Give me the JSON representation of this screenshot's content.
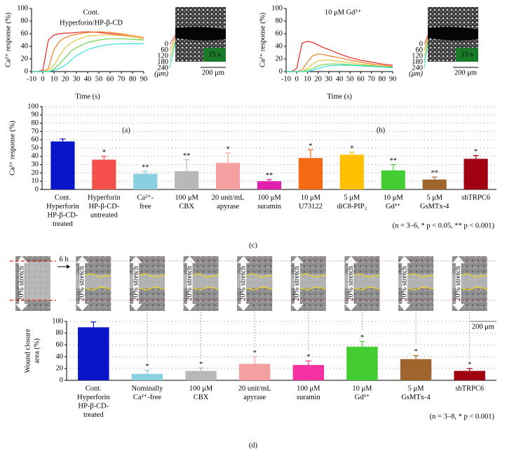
{
  "chart_data": [
    {
      "type": "line",
      "panel": "(a)",
      "annotations": [
        {
          "text": "Cont.",
          "color": "#000000"
        },
        {
          "text": "Hyperforin/HP-β-CD",
          "color": "#1a1ab4"
        }
      ],
      "xlabel": "Time (s)",
      "ylabel": "Ca²⁺ response (%)",
      "x": [
        -10,
        -5,
        0,
        5,
        10,
        15,
        20,
        25,
        30,
        40,
        50,
        60,
        70,
        80,
        90
      ],
      "xlim": [
        -10,
        90
      ],
      "xticks": [
        -10,
        0,
        10,
        20,
        30,
        40,
        50,
        60,
        70,
        80,
        90
      ],
      "ylim": [
        0,
        100
      ],
      "yticks": [
        0,
        20,
        40,
        60,
        80,
        100
      ],
      "legend_unit": "(μm)",
      "image_label": "15 s",
      "scale_bar": "200 μm",
      "series": [
        {
          "name": "0",
          "color": "#e8251f",
          "values": [
            0,
            0,
            2,
            50,
            58,
            60,
            61,
            61,
            62,
            63,
            62,
            60,
            58,
            55,
            52
          ]
        },
        {
          "name": "60",
          "color": "#f07d1e",
          "values": [
            0,
            0,
            0,
            5,
            35,
            48,
            54,
            57,
            59,
            62,
            63,
            62,
            60,
            57,
            54
          ]
        },
        {
          "name": "120",
          "color": "#e0c83a",
          "values": [
            0,
            0,
            0,
            2,
            10,
            25,
            38,
            45,
            50,
            56,
            58,
            58,
            57,
            55,
            52
          ]
        },
        {
          "name": "180",
          "color": "#6cd44a",
          "values": [
            0,
            0,
            0,
            0,
            4,
            12,
            22,
            32,
            38,
            46,
            50,
            52,
            52,
            51,
            50
          ]
        },
        {
          "name": "240",
          "color": "#33dede",
          "values": [
            0,
            0,
            0,
            0,
            2,
            5,
            10,
            18,
            25,
            35,
            40,
            43,
            44,
            44,
            44
          ]
        }
      ]
    },
    {
      "type": "line",
      "panel": "(b)",
      "annotations": [
        {
          "text": "10 μM Gd³⁺",
          "color": "#000000"
        }
      ],
      "xlabel": "Time (s)",
      "ylabel": "Ca²⁺ response (%)",
      "x": [
        -10,
        -5,
        0,
        5,
        10,
        15,
        20,
        25,
        30,
        40,
        50,
        60,
        70,
        80,
        90
      ],
      "xlim": [
        -10,
        90
      ],
      "xticks": [
        -10,
        0,
        10,
        20,
        30,
        40,
        50,
        60,
        70,
        80,
        90
      ],
      "ylim": [
        0,
        100
      ],
      "yticks": [
        0,
        20,
        40,
        60,
        80,
        100
      ],
      "legend_unit": "(μm)",
      "image_label": "15 s",
      "scale_bar": "200 μm",
      "series": [
        {
          "name": "0",
          "color": "#e8251f",
          "values": [
            0,
            0,
            5,
            45,
            48,
            46,
            42,
            38,
            35,
            28,
            22,
            18,
            15,
            12,
            10
          ]
        },
        {
          "name": "60",
          "color": "#f07d1e",
          "values": [
            0,
            0,
            0,
            3,
            15,
            25,
            28,
            27,
            25,
            22,
            18,
            15,
            12,
            10,
            8
          ]
        },
        {
          "name": "120",
          "color": "#e0c83a",
          "values": [
            0,
            0,
            0,
            0,
            5,
            12,
            17,
            18,
            18,
            16,
            14,
            12,
            10,
            8,
            7
          ]
        },
        {
          "name": "180",
          "color": "#6cd44a",
          "values": [
            0,
            0,
            0,
            0,
            2,
            5,
            9,
            11,
            12,
            12,
            11,
            10,
            9,
            8,
            7
          ]
        },
        {
          "name": "240",
          "color": "#33dede",
          "values": [
            0,
            0,
            0,
            0,
            0,
            2,
            5,
            7,
            9,
            10,
            10,
            9,
            8,
            7,
            6
          ]
        }
      ]
    },
    {
      "type": "bar",
      "panel": "(c)",
      "ylabel": "Ca²⁺ response (%)",
      "note": "(n = 3–6, * p < 0.05, ** p < 0.001)",
      "categories": [
        [
          "Cont.",
          "Hyperforin",
          "HP-β-CD-",
          "treated"
        ],
        [
          "Hyperforin",
          "HP-β-CD-",
          "untreated"
        ],
        [
          "Ca²⁺-",
          "free"
        ],
        [
          "100 μM",
          "CBX"
        ],
        [
          "20 unit/mL",
          "apyrase"
        ],
        [
          "100 μM",
          "suramin"
        ],
        [
          "10 μM",
          "U73122"
        ],
        [
          "5 μM",
          "diC8-PIP₂"
        ],
        [
          "10 μM",
          "Gd³⁺"
        ],
        [
          "5 μM",
          "GsMTx-4"
        ],
        [
          "shTRPC6"
        ]
      ],
      "label_colors": [
        [
          null,
          "#1a1ab4",
          "#1a1ab4",
          "#1a1ab4"
        ],
        [
          "#e0201a",
          "#e0201a",
          null
        ]
      ],
      "values": [
        58,
        36,
        19,
        22,
        32,
        10,
        38,
        42,
        23,
        12,
        37
      ],
      "errors": [
        3,
        4,
        3,
        14,
        12,
        2,
        10,
        3,
        7,
        3,
        4
      ],
      "significance": [
        null,
        "*",
        "**",
        "**",
        "*",
        "**",
        "*",
        "*",
        "**",
        "**",
        "*"
      ],
      "colors": [
        "#0a14c8",
        "#f5504b",
        "#8ad0e0",
        "#b8b8b8",
        "#f5a0a0",
        "#e020b0",
        "#f56a14",
        "#ffc000",
        "#44cc33",
        "#a0642d",
        "#a00010"
      ],
      "ylim": [
        0,
        100
      ],
      "yticks": [
        0,
        10,
        20,
        30,
        40,
        50,
        60,
        70,
        80,
        90,
        100
      ],
      "grid": true
    },
    {
      "type": "bar",
      "panel": "(d)",
      "ylabel": [
        "Wound closure",
        "area (%)"
      ],
      "note": "(n = 3–8, * p < 0.001)",
      "stretch_label": "20% stretch",
      "time_label": "6 h",
      "scale_bar": "200 μm",
      "categories": [
        [
          "Cont.",
          "Hyperforin",
          "HP-β-CD-",
          "treated"
        ],
        [
          "Nominally",
          "Ca²⁺-free"
        ],
        [
          "100 μM",
          "CBX"
        ],
        [
          "20 unit/mL",
          "apyrase"
        ],
        [
          "100 μM",
          "suramin"
        ],
        [
          "10 μM",
          "Gd³⁺"
        ],
        [
          "5 μM",
          "GsMTx-4"
        ],
        [
          "shTRPC6"
        ]
      ],
      "label_colors": [
        [
          null,
          "#1a1ab4",
          "#1a1ab4",
          "#1a1ab4"
        ]
      ],
      "values": [
        90,
        11,
        16,
        28,
        26,
        57,
        36,
        16
      ],
      "errors": [
        9,
        6,
        5,
        12,
        7,
        9,
        6,
        4
      ],
      "significance": [
        null,
        "*",
        "*",
        "*",
        "*",
        "*",
        "*",
        "*"
      ],
      "colors": [
        "#0a14c8",
        "#8ad0e0",
        "#b8b8b8",
        "#f5a0a0",
        "#f530a0",
        "#44cc33",
        "#a0642d",
        "#a00010"
      ],
      "ylim": [
        0,
        100
      ],
      "yticks": [
        0,
        20,
        40,
        60,
        80,
        100
      ],
      "grid": true
    }
  ]
}
